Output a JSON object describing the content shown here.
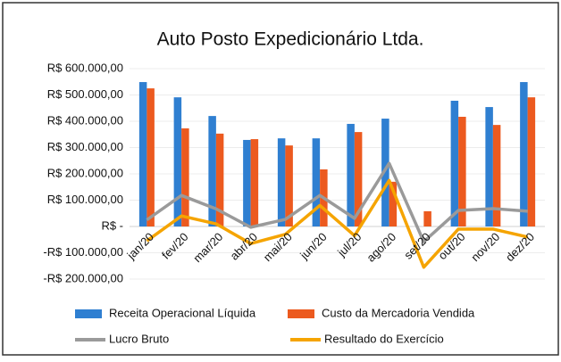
{
  "chart_data": {
    "type": "bar_line",
    "title": "Auto Posto Expedicionário Ltda.",
    "categories": [
      "jan/20",
      "fev/20",
      "mar/20",
      "abr/20",
      "mai/20",
      "jun/20",
      "jul/20",
      "ago/20",
      "set/20",
      "out/20",
      "nov/20",
      "dez/20"
    ],
    "series": [
      {
        "name": "Receita Operacional Líquida",
        "kind": "bar",
        "color": "#2f7fd1",
        "values": [
          549000,
          491000,
          420000,
          329000,
          335000,
          335000,
          390000,
          410000,
          0,
          478000,
          454000,
          549000
        ]
      },
      {
        "name": "Custo da Mercadoria Vendida",
        "kind": "bar",
        "color": "#ec5a1f",
        "values": [
          525000,
          373000,
          353000,
          332000,
          308000,
          217000,
          359000,
          170000,
          58000,
          417000,
          386000,
          491000
        ]
      },
      {
        "name": "Lucro Bruto",
        "kind": "line",
        "color": "#9a9a9a",
        "values": [
          25000,
          118000,
          67000,
          -3000,
          27000,
          118000,
          31000,
          240000,
          -58000,
          61000,
          68000,
          58000
        ]
      },
      {
        "name": "Resultado do Exercício",
        "kind": "line",
        "color": "#f5a400",
        "values": [
          -55000,
          40000,
          10000,
          -65000,
          -30000,
          80000,
          -35000,
          175000,
          -155000,
          -10000,
          -10000,
          -40000
        ]
      }
    ],
    "ylim": [
      -200000,
      600000
    ],
    "yticks": [
      {
        "value": -200000,
        "label": "-R$ 200.000,00"
      },
      {
        "value": -100000,
        "label": "-R$ 100.000,00"
      },
      {
        "value": 0,
        "label": "R$ -"
      },
      {
        "value": 100000,
        "label": "R$ 100.000,00"
      },
      {
        "value": 200000,
        "label": "R$ 200.000,00"
      },
      {
        "value": 300000,
        "label": "R$ 300.000,00"
      },
      {
        "value": 400000,
        "label": "R$ 400.000,00"
      },
      {
        "value": 500000,
        "label": "R$ 500.000,00"
      },
      {
        "value": 600000,
        "label": "R$ 600.000,00"
      }
    ],
    "grid": true
  }
}
